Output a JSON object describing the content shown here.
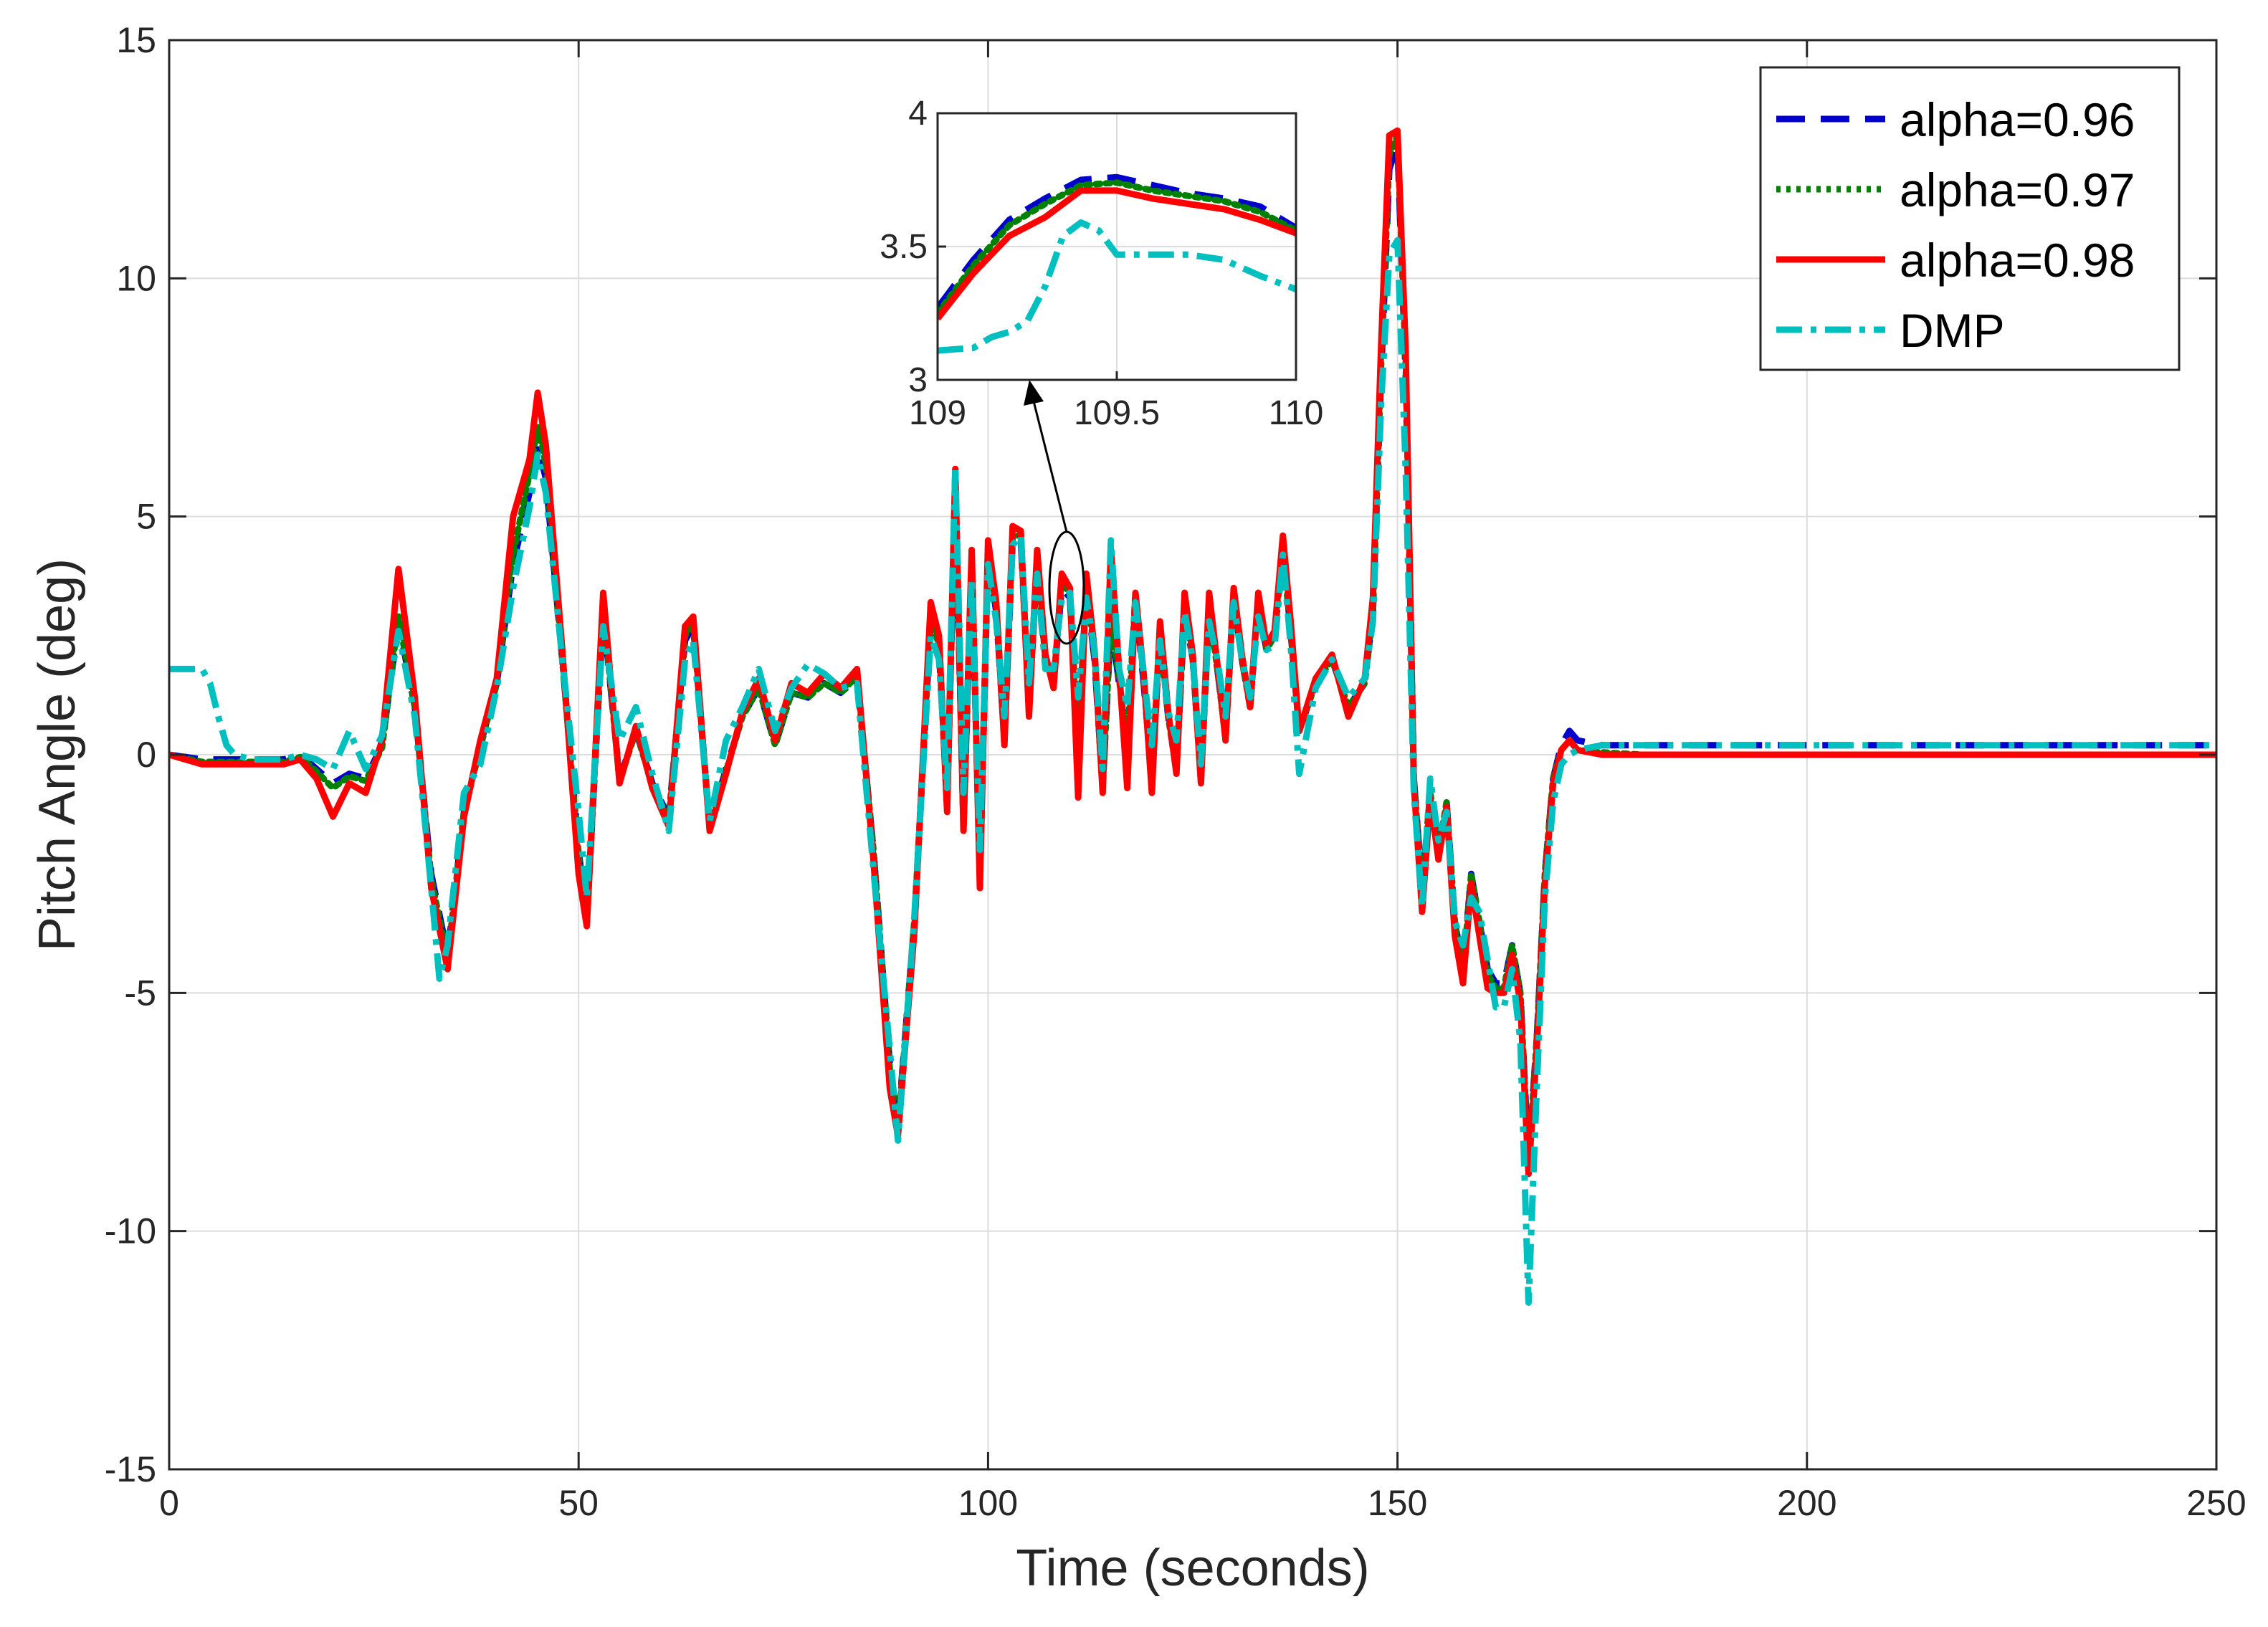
{
  "chart_data": {
    "type": "line",
    "title": "",
    "xlabel": "Time (seconds)",
    "ylabel": "Pitch Angle (deg)",
    "xlim": [
      0,
      250
    ],
    "ylim": [
      -15,
      15
    ],
    "xticks": [
      0,
      50,
      100,
      150,
      200,
      250
    ],
    "yticks": [
      -15,
      -10,
      -5,
      0,
      5,
      10,
      15
    ],
    "grid": true,
    "legend_position": "top-right",
    "series": [
      {
        "name": "alpha=0.96",
        "color": "#0000cc",
        "dash": "dashed",
        "x": [
          0,
          4,
          8,
          14,
          16,
          18,
          20,
          22,
          24,
          26,
          28,
          30,
          32,
          34,
          36,
          38,
          40,
          42,
          44,
          45,
          46,
          48,
          50,
          51,
          53,
          55,
          57,
          59,
          61,
          63,
          64,
          66,
          68,
          70,
          72,
          74,
          76,
          78,
          80,
          82,
          84,
          86,
          88,
          89,
          91,
          93,
          94,
          95,
          96,
          97,
          98,
          99,
          100,
          101,
          102,
          103,
          104,
          105,
          106,
          107,
          108,
          109,
          110,
          111,
          112,
          113,
          114,
          115,
          116,
          117,
          118,
          119,
          120,
          121,
          122,
          123,
          124,
          125,
          126,
          127,
          128,
          129,
          130,
          131,
          132,
          133,
          134,
          135,
          136,
          137,
          138,
          140,
          142,
          144,
          146,
          147,
          148,
          149,
          150,
          151,
          152,
          153,
          154,
          155,
          156,
          157,
          158,
          159,
          160,
          161,
          162,
          163,
          164,
          165,
          166,
          167,
          168,
          169,
          170,
          171,
          172,
          175,
          180,
          200,
          250
        ],
        "y": [
          0,
          -0.1,
          -0.1,
          -0.1,
          0,
          -0.3,
          -0.6,
          -0.4,
          -0.5,
          0.2,
          2.8,
          1.0,
          -2.5,
          -4.2,
          -1.2,
          0.2,
          1.5,
          4.0,
          5.5,
          6.5,
          5.8,
          2.0,
          -2.0,
          -3.5,
          3.0,
          -0.5,
          0.5,
          -0.6,
          -1.3,
          2.4,
          2.7,
          -1.5,
          -0.3,
          0.8,
          1.4,
          0.2,
          1.3,
          1.2,
          1.5,
          1.3,
          1.6,
          -2.0,
          -6.5,
          -7.8,
          -3.5,
          2.8,
          2.2,
          -1.0,
          5.5,
          -1.5,
          4.0,
          -2.5,
          4.2,
          3.0,
          0.3,
          4.5,
          4.5,
          1.0,
          4.0,
          2.0,
          1.5,
          3.5,
          3.3,
          0.2,
          3.5,
          2.0,
          -0.7,
          2.8,
          1.5,
          0.2,
          3.3,
          1.5,
          -0.5,
          2.5,
          0.8,
          -0.3,
          3.0,
          2.0,
          -0.5,
          3.0,
          1.8,
          0.4,
          3.3,
          2.0,
          1.0,
          3.2,
          2.2,
          2.5,
          4.3,
          2.5,
          0.5,
          1.5,
          2.0,
          1.0,
          1.5,
          3.0,
          8.0,
          12.3,
          12.8,
          8.0,
          -0.5,
          -2.8,
          -0.8,
          -2.0,
          -1.0,
          -3.5,
          -4.5,
          -2.5,
          -3.5,
          -4.5,
          -4.8,
          -4.8,
          -4.0,
          -5.0,
          -8.5,
          -6.0,
          -2.5,
          -0.5,
          0.2,
          0.5,
          0.3,
          0.2,
          0.2,
          0.2,
          0.2
        ]
      },
      {
        "name": "alpha=0.97",
        "color": "#008000",
        "dash": "dotted",
        "x": [
          0,
          4,
          8,
          14,
          16,
          18,
          20,
          22,
          24,
          26,
          28,
          30,
          32,
          34,
          36,
          38,
          40,
          42,
          44,
          45,
          46,
          48,
          50,
          51,
          53,
          55,
          57,
          59,
          61,
          63,
          64,
          66,
          68,
          70,
          72,
          74,
          76,
          78,
          80,
          82,
          84,
          86,
          88,
          89,
          91,
          93,
          94,
          95,
          96,
          97,
          98,
          99,
          100,
          101,
          102,
          103,
          104,
          105,
          106,
          107,
          108,
          109,
          110,
          111,
          112,
          113,
          114,
          115,
          116,
          117,
          118,
          119,
          120,
          121,
          122,
          123,
          124,
          125,
          126,
          127,
          128,
          129,
          130,
          131,
          132,
          133,
          134,
          135,
          136,
          137,
          138,
          140,
          142,
          144,
          146,
          147,
          148,
          149,
          150,
          151,
          152,
          153,
          154,
          155,
          156,
          157,
          158,
          159,
          160,
          161,
          162,
          163,
          164,
          165,
          166,
          167,
          168,
          169,
          170,
          171,
          172,
          175,
          180,
          200,
          250
        ],
        "y": [
          0,
          -0.15,
          -0.15,
          -0.15,
          -0.05,
          -0.35,
          -0.7,
          -0.45,
          -0.55,
          0.15,
          2.9,
          1.0,
          -2.6,
          -4.3,
          -1.2,
          0.15,
          1.5,
          4.2,
          5.9,
          6.9,
          6.1,
          2.0,
          -2.1,
          -3.5,
          3.1,
          -0.55,
          0.5,
          -0.65,
          -1.35,
          2.5,
          2.75,
          -1.5,
          -0.35,
          0.8,
          1.4,
          0.2,
          1.3,
          1.2,
          1.5,
          1.3,
          1.65,
          -2.0,
          -6.6,
          -7.9,
          -3.5,
          2.9,
          2.3,
          -1.0,
          5.6,
          -1.5,
          4.1,
          -2.6,
          4.3,
          3.1,
          0.3,
          4.6,
          4.6,
          1.0,
          4.1,
          2.0,
          1.5,
          3.6,
          3.4,
          0.1,
          3.6,
          2.1,
          -0.75,
          2.9,
          1.6,
          0.15,
          3.4,
          1.6,
          -0.55,
          2.6,
          0.8,
          -0.35,
          3.1,
          2.0,
          -0.55,
          3.1,
          1.8,
          0.35,
          3.4,
          2.0,
          1.0,
          3.3,
          2.2,
          2.5,
          4.4,
          2.5,
          0.5,
          1.5,
          2.0,
          1.0,
          1.5,
          3.0,
          8.2,
          12.6,
          13.0,
          8.2,
          -0.5,
          -2.9,
          -0.8,
          -2.0,
          -1.0,
          -3.5,
          -4.6,
          -2.5,
          -3.5,
          -4.6,
          -4.9,
          -4.9,
          -4.0,
          -5.0,
          -8.6,
          -6.0,
          -2.5,
          -0.5,
          0.1,
          0.3,
          0.1,
          0.05,
          0.0,
          0.0,
          0.0
        ]
      },
      {
        "name": "alpha=0.98",
        "color": "#ff0000",
        "dash": "solid",
        "x": [
          0,
          4,
          8,
          14,
          16,
          18,
          20,
          22,
          24,
          26,
          28,
          30,
          32,
          34,
          36,
          38,
          40,
          42,
          44,
          45,
          46,
          48,
          50,
          51,
          53,
          55,
          57,
          59,
          61,
          63,
          64,
          66,
          68,
          70,
          72,
          74,
          76,
          78,
          80,
          82,
          84,
          86,
          88,
          89,
          91,
          93,
          94,
          95,
          96,
          97,
          98,
          99,
          100,
          101,
          102,
          103,
          104,
          105,
          106,
          107,
          108,
          109,
          110,
          111,
          112,
          113,
          114,
          115,
          116,
          117,
          118,
          119,
          120,
          121,
          122,
          123,
          124,
          125,
          126,
          127,
          128,
          129,
          130,
          131,
          132,
          133,
          134,
          135,
          136,
          137,
          138,
          140,
          142,
          144,
          146,
          147,
          148,
          149,
          150,
          151,
          152,
          153,
          154,
          155,
          156,
          157,
          158,
          159,
          160,
          161,
          162,
          163,
          164,
          165,
          166,
          167,
          168,
          169,
          170,
          171,
          172,
          175,
          180,
          200,
          250
        ],
        "y": [
          0,
          -0.2,
          -0.2,
          -0.2,
          -0.1,
          -0.5,
          -1.3,
          -0.6,
          -0.8,
          0.3,
          3.9,
          1.2,
          -2.8,
          -4.5,
          -1.3,
          0.3,
          1.6,
          5.0,
          6.2,
          7.6,
          6.5,
          2.2,
          -2.5,
          -3.6,
          3.4,
          -0.6,
          0.6,
          -0.7,
          -1.5,
          2.7,
          2.9,
          -1.6,
          -0.4,
          0.9,
          1.6,
          0.3,
          1.5,
          1.3,
          1.7,
          1.4,
          1.8,
          -2.2,
          -7.0,
          -8.0,
          -3.7,
          3.2,
          2.5,
          -1.2,
          6.0,
          -1.6,
          4.3,
          -2.8,
          4.5,
          3.2,
          0.2,
          4.8,
          4.7,
          0.8,
          4.3,
          2.1,
          1.4,
          3.8,
          3.5,
          -0.9,
          3.8,
          2.2,
          -0.8,
          4.3,
          1.8,
          -0.7,
          3.4,
          1.7,
          -0.8,
          2.8,
          0.9,
          -0.4,
          3.4,
          2.1,
          -0.6,
          3.4,
          1.9,
          0.3,
          3.5,
          2.1,
          1.0,
          3.4,
          2.3,
          2.6,
          4.6,
          2.7,
          0.5,
          1.6,
          2.1,
          0.8,
          1.6,
          3.3,
          8.6,
          13.0,
          13.1,
          8.5,
          -0.6,
          -3.3,
          -0.9,
          -2.2,
          -1.1,
          -3.8,
          -4.8,
          -2.7,
          -3.8,
          -4.9,
          -5.0,
          -5.0,
          -4.2,
          -5.2,
          -8.8,
          -6.2,
          -2.7,
          -0.6,
          0.1,
          0.3,
          0.1,
          0.0,
          0.0,
          0.0,
          0.0
        ]
      },
      {
        "name": "DMP",
        "color": "#00bfbf",
        "dash": "dashdot",
        "x": [
          0,
          3,
          4,
          5,
          6,
          7,
          8,
          10,
          14,
          16,
          18,
          20,
          22,
          24,
          26,
          28,
          30,
          32,
          33,
          34,
          36,
          38,
          40,
          42,
          44,
          45,
          46,
          48,
          50,
          51,
          53,
          55,
          57,
          59,
          61,
          63,
          64,
          66,
          68,
          70,
          72,
          74,
          76,
          78,
          80,
          82,
          84,
          86,
          88,
          89,
          91,
          93,
          94,
          95,
          96,
          97,
          98,
          99,
          100,
          101,
          102,
          103,
          104,
          105,
          106,
          107,
          108,
          109,
          110,
          111,
          112,
          113,
          114,
          115,
          116,
          117,
          118,
          119,
          120,
          121,
          122,
          123,
          124,
          125,
          126,
          127,
          128,
          129,
          130,
          131,
          132,
          133,
          134,
          135,
          136,
          137,
          138,
          140,
          142,
          144,
          146,
          147,
          148,
          149,
          150,
          151,
          152,
          153,
          154,
          155,
          156,
          157,
          158,
          159,
          160,
          161,
          162,
          163,
          164,
          165,
          166,
          167,
          168,
          169,
          170,
          171,
          172,
          175,
          180,
          200,
          250
        ],
        "y": [
          1.8,
          1.8,
          1.8,
          1.5,
          0.8,
          0.2,
          0.0,
          -0.1,
          -0.1,
          0.0,
          -0.1,
          -0.3,
          0.5,
          -0.3,
          0.4,
          2.6,
          0.8,
          -2.8,
          -4.7,
          -4.0,
          -0.8,
          -0.2,
          1.4,
          3.5,
          5.2,
          6.3,
          5.5,
          2.0,
          -1.2,
          -3.0,
          2.7,
          0.3,
          1.0,
          -0.4,
          -1.6,
          2.0,
          2.4,
          -1.4,
          0.3,
          1.0,
          1.8,
          0.5,
          1.4,
          1.9,
          1.7,
          1.4,
          1.5,
          -2.4,
          -6.2,
          -8.1,
          -3.4,
          2.5,
          2.0,
          -0.7,
          6.0,
          -0.8,
          3.7,
          -2.0,
          4.0,
          2.8,
          0.8,
          4.4,
          4.6,
          1.5,
          3.8,
          1.8,
          1.8,
          3.3,
          3.4,
          1.2,
          3.3,
          2.2,
          -0.3,
          4.5,
          1.8,
          1.0,
          3.2,
          1.7,
          0.2,
          2.4,
          0.9,
          0.3,
          3.0,
          2.0,
          -0.2,
          2.8,
          2.0,
          0.8,
          3.2,
          2.0,
          1.2,
          2.9,
          2.2,
          2.3,
          4.2,
          2.2,
          -0.4,
          1.4,
          2.0,
          1.2,
          1.6,
          2.8,
          7.4,
          10.5,
          10.8,
          6.0,
          -0.8,
          -3.2,
          -0.5,
          -1.8,
          -1.2,
          -3.5,
          -4.0,
          -3.0,
          -3.3,
          -4.3,
          -5.3,
          -5.3,
          -4.5,
          -6.0,
          -11.5,
          -7.0,
          -3.0,
          -1.0,
          -0.2,
          0.0,
          0.1,
          0.2,
          0.2,
          0.2,
          0.2
        ]
      }
    ],
    "inset": {
      "xlim": [
        109,
        110
      ],
      "ylim": [
        3,
        4
      ],
      "xticks": [
        109,
        109.5,
        110
      ],
      "yticks": [
        3,
        3.5,
        4
      ],
      "xtick_labels": [
        "109",
        "109.5",
        "110"
      ],
      "ytick_labels": [
        "3",
        "3.5",
        "4"
      ],
      "series": [
        {
          "color": "#0000cc",
          "dash": "dashed",
          "x": [
            109,
            109.1,
            109.2,
            109.3,
            109.4,
            109.5,
            109.6,
            109.7,
            109.8,
            109.9,
            110
          ],
          "y": [
            3.27,
            3.45,
            3.6,
            3.68,
            3.75,
            3.76,
            3.73,
            3.7,
            3.68,
            3.65,
            3.57
          ]
        },
        {
          "color": "#008000",
          "dash": "dotted",
          "x": [
            109,
            109.1,
            109.2,
            109.3,
            109.4,
            109.5,
            109.6,
            109.7,
            109.8,
            109.9,
            110
          ],
          "y": [
            3.25,
            3.43,
            3.58,
            3.66,
            3.73,
            3.74,
            3.71,
            3.69,
            3.67,
            3.63,
            3.56
          ]
        },
        {
          "color": "#ff0000",
          "dash": "solid",
          "x": [
            109,
            109.1,
            109.2,
            109.3,
            109.4,
            109.5,
            109.6,
            109.7,
            109.8,
            109.9,
            110
          ],
          "y": [
            3.23,
            3.4,
            3.54,
            3.61,
            3.71,
            3.71,
            3.68,
            3.66,
            3.64,
            3.6,
            3.55
          ]
        },
        {
          "color": "#00bfbf",
          "dash": "dashdot",
          "x": [
            109,
            109.1,
            109.15,
            109.2,
            109.25,
            109.3,
            109.35,
            109.4,
            109.45,
            109.5,
            109.6,
            109.7,
            109.8,
            109.9,
            110
          ],
          "y": [
            3.11,
            3.12,
            3.16,
            3.18,
            3.22,
            3.35,
            3.54,
            3.59,
            3.56,
            3.47,
            3.47,
            3.47,
            3.45,
            3.39,
            3.34
          ]
        }
      ]
    }
  }
}
